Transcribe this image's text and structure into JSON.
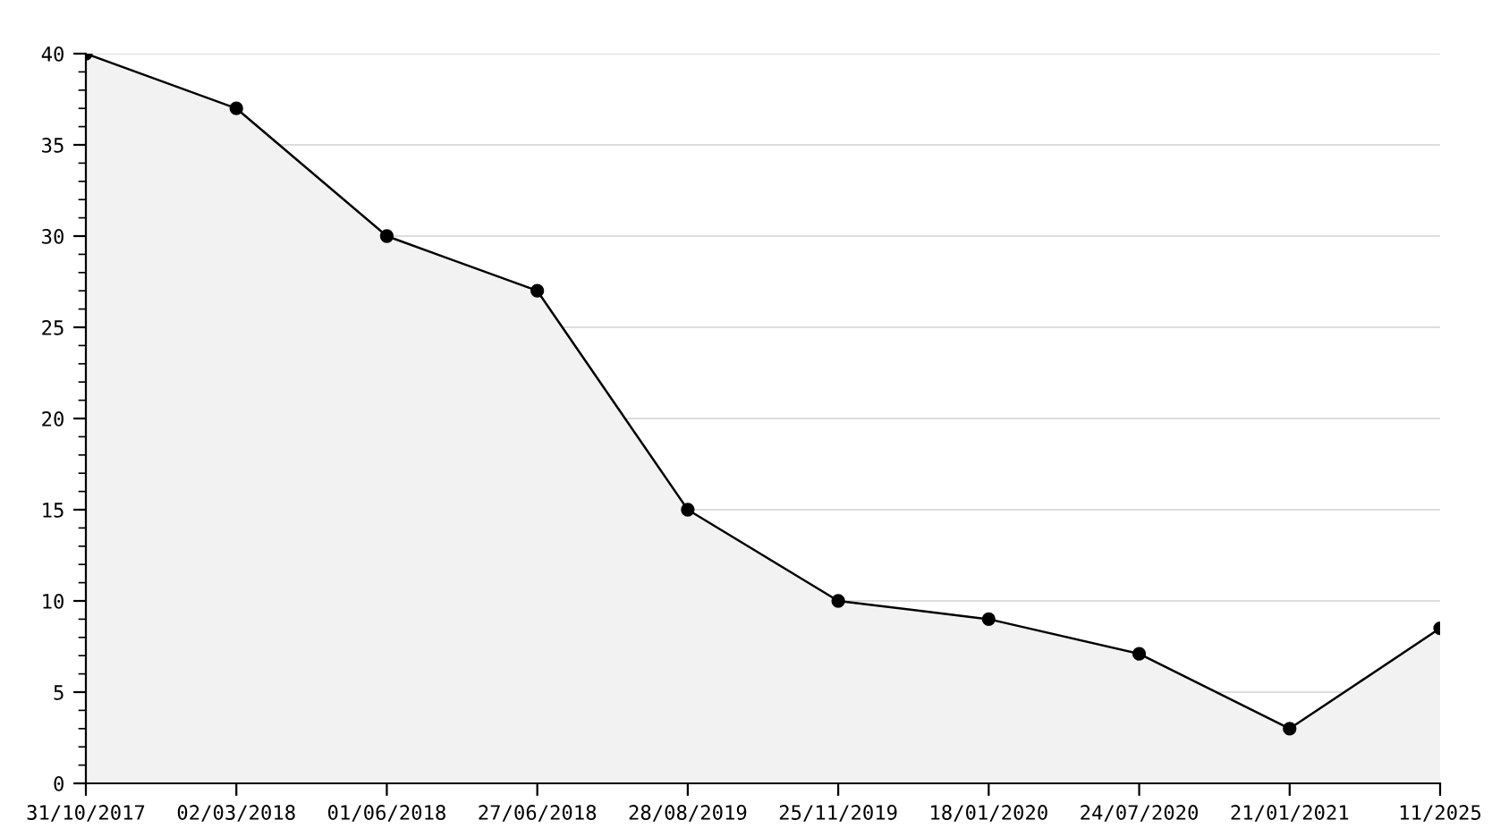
{
  "chart_data": {
    "type": "area",
    "categories": [
      "31/10/2017",
      "02/03/2018",
      "01/06/2018",
      "27/06/2018",
      "28/08/2019",
      "25/11/2019",
      "18/01/2020",
      "24/07/2020",
      "21/01/2021",
      "11/2025"
    ],
    "series": [
      {
        "color": "#000000",
        "values": [
          40,
          37,
          30,
          27,
          15,
          10,
          9,
          7.1,
          3,
          8.5
        ]
      }
    ],
    "ylim": [
      0,
      40
    ],
    "yticks": [
      0,
      5,
      10,
      15,
      20,
      25,
      30,
      35,
      40
    ],
    "grid": "y",
    "marker": "circle",
    "line_style": "solid"
  }
}
